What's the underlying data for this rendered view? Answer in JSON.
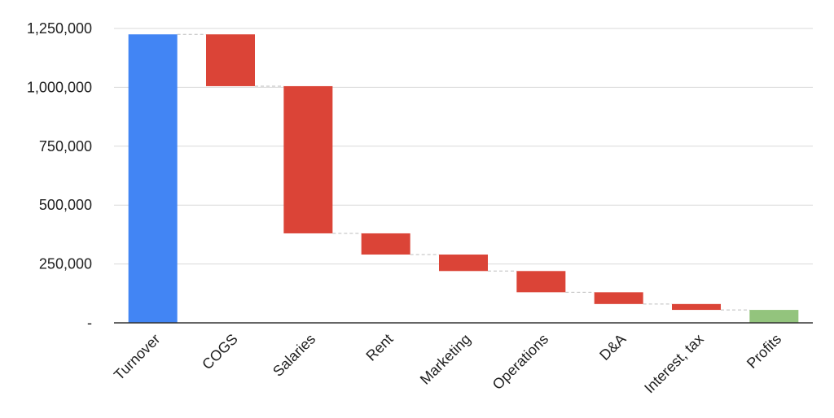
{
  "chart_data": {
    "type": "bar",
    "subtype": "waterfall",
    "title": "",
    "xlabel": "",
    "ylabel": "",
    "ylim": [
      0,
      1250000
    ],
    "y_ticks": [
      0,
      250000,
      500000,
      750000,
      1000000,
      1250000
    ],
    "y_tick_labels": [
      "-",
      "250,000",
      "500,000",
      "750,000",
      "1,000,000",
      "1,250,000"
    ],
    "grid": true,
    "legend": "none",
    "categories": [
      "Turnover",
      "COGS",
      "Salaries",
      "Rent",
      "Marketing",
      "Operations",
      "D&A",
      "Interest, tax",
      "Profits"
    ],
    "bars": [
      {
        "category": "Turnover",
        "kind": "total",
        "start": 0,
        "end": 1225000
      },
      {
        "category": "COGS",
        "kind": "decrease",
        "start": 1225000,
        "end": 1005000
      },
      {
        "category": "Salaries",
        "kind": "decrease",
        "start": 1005000,
        "end": 380000
      },
      {
        "category": "Rent",
        "kind": "decrease",
        "start": 380000,
        "end": 290000
      },
      {
        "category": "Marketing",
        "kind": "decrease",
        "start": 290000,
        "end": 220000
      },
      {
        "category": "Operations",
        "kind": "decrease",
        "start": 220000,
        "end": 130000
      },
      {
        "category": "D&A",
        "kind": "decrease",
        "start": 130000,
        "end": 80000
      },
      {
        "category": "Interest, tax",
        "kind": "decrease",
        "start": 80000,
        "end": 55000
      },
      {
        "category": "Profits",
        "kind": "total",
        "start": 0,
        "end": 55000
      }
    ],
    "colors": {
      "total_start": "#4285f4",
      "decrease": "#db4437",
      "total_end": "#93c47d",
      "grid": "#d9d9d9",
      "axis": "#333333",
      "connector": "#bdbdbd"
    }
  }
}
